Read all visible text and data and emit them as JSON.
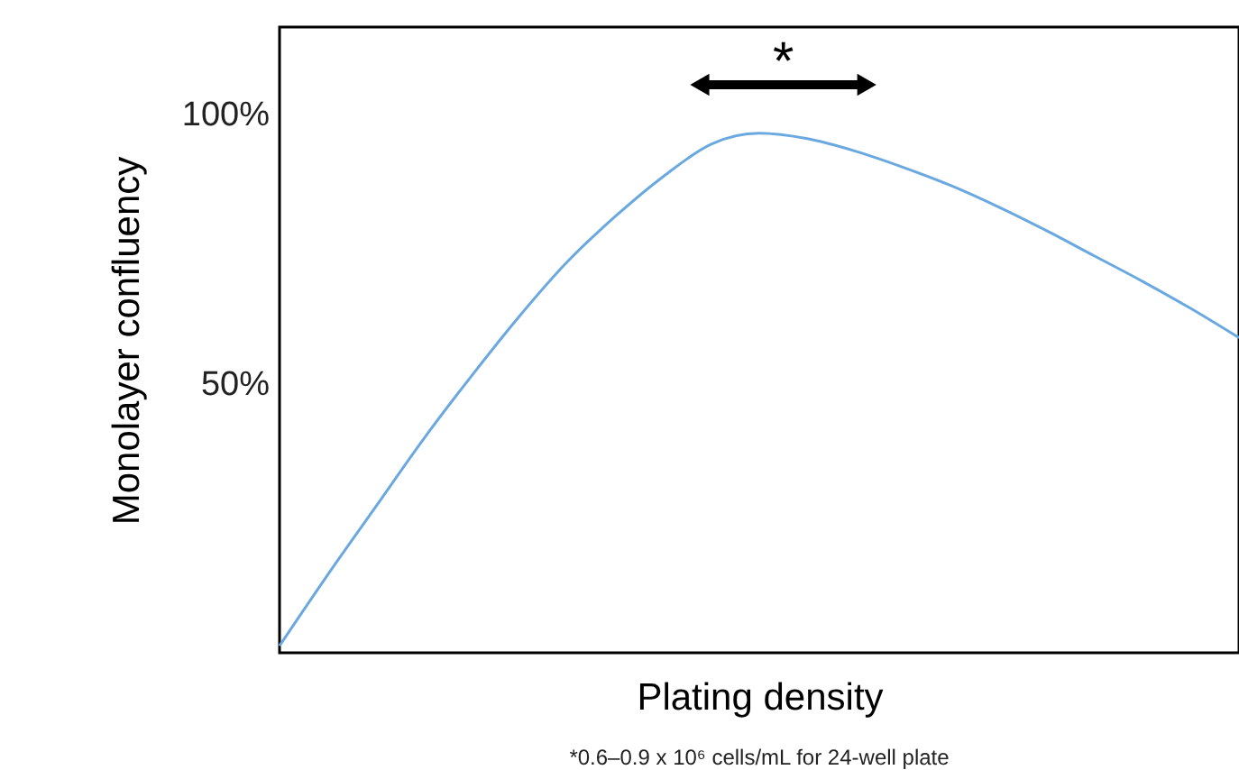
{
  "chart_data": {
    "type": "line",
    "xlabel": "Plating density",
    "ylabel": "Monolayer confluency",
    "categories": [
      null,
      null,
      null,
      null,
      null,
      null,
      null,
      null,
      null,
      null,
      null,
      null,
      null,
      null,
      null,
      null,
      null,
      null,
      null,
      null,
      null
    ],
    "series": [
      {
        "color": "#6aa8e0",
        "values": [
          1.3,
          14.4,
          27,
          39.6,
          51.3,
          62.4,
          72.5,
          80.9,
          88.3,
          94.3,
          96.3,
          95.3,
          93,
          90,
          86.6,
          82.6,
          78.2,
          73.5,
          68.8,
          63.8,
          58.4
        ]
      }
    ],
    "ylim": [
      0,
      116
    ],
    "yticks": [
      {
        "value": 50,
        "label": "50%"
      },
      {
        "value": 100,
        "label": "100%"
      }
    ],
    "tick_labels": "y",
    "grid": false,
    "marker": "none",
    "line_style": "solid",
    "annotations": [
      "*",
      "*0.6–0.9 x 10⁶ cells/mL for 24-well plate"
    ]
  }
}
